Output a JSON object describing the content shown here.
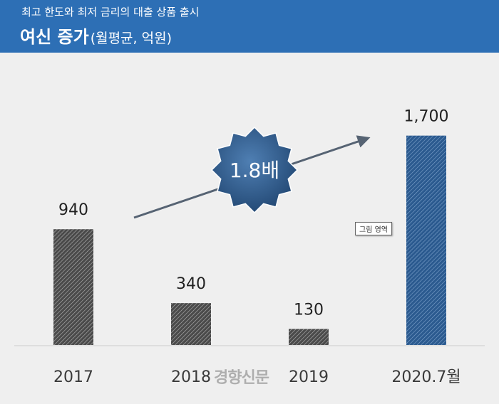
{
  "header": {
    "subtitle": "최고 한도와 최저 금리의 대출 상품 출시",
    "title": "여신 증가",
    "unit": "(월평균, 억원)"
  },
  "badge": {
    "text": "1.8배"
  },
  "tooltip": {
    "text": "그림 영역"
  },
  "watermark": {
    "text": "경향신문"
  },
  "colors": {
    "header_bg": "#2d6fb5",
    "gray_bar": "#4a4a4a",
    "blue_bar": "#2b5a8f",
    "badge": "#2f5b8c",
    "arrow": "#566373"
  },
  "chart_data": {
    "type": "bar",
    "categories": [
      "2017",
      "2018",
      "2019",
      "2020.7월"
    ],
    "values": [
      940,
      340,
      130,
      1700
    ],
    "value_labels": [
      "940",
      "340",
      "130",
      "1,700"
    ],
    "highlight_index": 3,
    "ylim": [
      0,
      1750
    ],
    "grid": false,
    "annotation": "1.8배"
  }
}
